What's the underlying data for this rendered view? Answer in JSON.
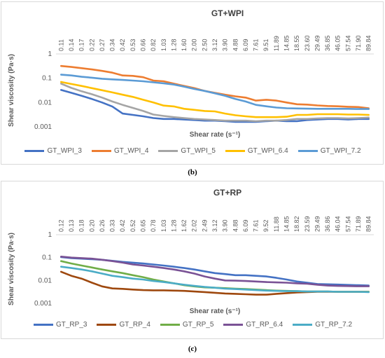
{
  "captions": {
    "b": "(b)",
    "c": "(c)"
  },
  "chart_data": [
    {
      "type": "line",
      "title": "GT+WPI",
      "xlabel": "Shear rate (s⁻¹)",
      "ylabel": "Shear viscosity (Pa·s)",
      "yscale": "log",
      "ylim": [
        0.001,
        1
      ],
      "yticks": [
        "1",
        "0.1",
        "0.01",
        "0.001"
      ],
      "legend_position": "bottom",
      "grid": false,
      "categories": [
        "0.11",
        "0.14",
        "0.17",
        "0.22",
        "0.27",
        "0.34",
        "0.42",
        "0.53",
        "0.66",
        "0.82",
        "1.03",
        "1.28",
        "1.60",
        "2.00",
        "2.50",
        "3.12",
        "3.90",
        "4.88",
        "6.09",
        "7.61",
        "9.51",
        "11.89",
        "14.85",
        "18.55",
        "23.60",
        "29.49",
        "36.85",
        "46.05",
        "57.54",
        "71.90",
        "89.84"
      ],
      "series": [
        {
          "name": "GT_WPI_3",
          "color": "#4472c4",
          "values": [
            0.033,
            0.025,
            0.019,
            0.014,
            0.01,
            0.0068,
            0.0035,
            0.0031,
            0.0027,
            0.0023,
            0.0021,
            0.0021,
            0.002,
            0.0019,
            0.0018,
            0.0018,
            0.0017,
            0.0016,
            0.0016,
            0.0016,
            0.0017,
            0.0018,
            0.0017,
            0.0017,
            0.0019,
            0.002,
            0.0021,
            0.0021,
            0.002,
            0.0021,
            0.0021
          ]
        },
        {
          "name": "GT_WPI_4",
          "color": "#ed7d31",
          "values": [
            0.32,
            0.29,
            0.26,
            0.23,
            0.2,
            0.17,
            0.13,
            0.125,
            0.11,
            0.08,
            0.075,
            0.06,
            0.048,
            0.039,
            0.03,
            0.025,
            0.021,
            0.018,
            0.016,
            0.012,
            0.013,
            0.012,
            0.01,
            0.0085,
            0.0082,
            0.0076,
            0.0072,
            0.007,
            0.0067,
            0.0065,
            0.0058
          ]
        },
        {
          "name": "GT_WPI_5",
          "color": "#a5a5a5",
          "values": [
            0.06,
            0.04,
            0.029,
            0.022,
            0.016,
            0.011,
            0.008,
            0.006,
            0.0045,
            0.0032,
            0.0028,
            0.0025,
            0.0023,
            0.0021,
            0.002,
            0.0019,
            0.0018,
            0.0018,
            0.0018,
            0.0017,
            0.0018,
            0.0018,
            0.0019,
            0.0021,
            0.0021,
            0.0022,
            0.0023,
            0.0023,
            0.0022,
            0.0023,
            0.0024
          ]
        },
        {
          "name": "GT_WPI_6.4",
          "color": "#ffc000",
          "values": [
            0.07,
            0.058,
            0.048,
            0.039,
            0.032,
            0.026,
            0.021,
            0.017,
            0.013,
            0.01,
            0.0075,
            0.0069,
            0.0055,
            0.005,
            0.0045,
            0.0043,
            0.0035,
            0.003,
            0.0027,
            0.0025,
            0.0025,
            0.0025,
            0.0026,
            0.0031,
            0.0031,
            0.0033,
            0.0033,
            0.0033,
            0.0032,
            0.0032,
            0.0031
          ]
        },
        {
          "name": "GT_WPI_7.2",
          "color": "#5b9bd5",
          "values": [
            0.14,
            0.13,
            0.115,
            0.105,
            0.095,
            0.09,
            0.085,
            0.08,
            0.075,
            0.068,
            0.062,
            0.055,
            0.045,
            0.036,
            0.03,
            0.024,
            0.019,
            0.014,
            0.011,
            0.008,
            0.007,
            0.0062,
            0.0058,
            0.0057,
            0.0056,
            0.0055,
            0.0055,
            0.0055,
            0.0055,
            0.0054,
            0.0054
          ]
        }
      ]
    },
    {
      "type": "line",
      "title": "GT+RP",
      "xlabel": "Shear rate (s⁻¹)",
      "ylabel": "Shear viscosity (Pa·s)",
      "yscale": "log",
      "ylim": [
        0.001,
        1
      ],
      "yticks": [
        "1",
        "0.1",
        "0.01",
        "0.001"
      ],
      "legend_position": "bottom",
      "grid": false,
      "categories": [
        "0.12",
        "0.13",
        "0.18",
        "0.20",
        "0.26",
        "0.33",
        "0.42",
        "0.52",
        "0.65",
        "0.78",
        "1.03",
        "1.28",
        "1.62",
        "2.02",
        "2.49",
        "3.12",
        "3.90",
        "4.88",
        "6.09",
        "7.61",
        "9.52",
        "11.88",
        "14.85",
        "18.82",
        "23.59",
        "29.49",
        "36.86",
        "46.04",
        "57.54",
        "71.89",
        "89.84"
      ],
      "series": [
        {
          "name": "GT_RP_3",
          "color": "#4472c4",
          "values": [
            0.105,
            0.095,
            0.09,
            0.085,
            0.08,
            0.072,
            0.065,
            0.06,
            0.055,
            0.05,
            0.045,
            0.04,
            0.035,
            0.03,
            0.025,
            0.021,
            0.019,
            0.017,
            0.017,
            0.016,
            0.015,
            0.013,
            0.011,
            0.009,
            0.008,
            0.007,
            0.0068,
            0.0066,
            0.0064,
            0.0062,
            0.006
          ]
        },
        {
          "name": "GT_RP_4",
          "color": "#9e480e",
          "values": [
            0.024,
            0.016,
            0.012,
            0.008,
            0.0055,
            0.0045,
            0.0043,
            0.004,
            0.0038,
            0.0037,
            0.0037,
            0.0036,
            0.0035,
            0.0033,
            0.0031,
            0.0029,
            0.0027,
            0.0026,
            0.0025,
            0.0024,
            0.0024,
            0.0026,
            0.0028,
            0.003,
            0.0031,
            0.0032,
            0.0032,
            0.0032,
            0.0032,
            0.0032,
            0.0032
          ]
        },
        {
          "name": "GT_RP_5",
          "color": "#70ad47",
          "values": [
            0.07,
            0.055,
            0.045,
            0.037,
            0.03,
            0.025,
            0.021,
            0.017,
            0.014,
            0.011,
            0.009,
            0.0075,
            0.0062,
            0.0055,
            0.005,
            0.0048,
            0.0046,
            0.0044,
            0.0042,
            0.004,
            0.0038,
            0.0036,
            0.0035,
            0.0034,
            0.0033,
            0.0033,
            0.0033,
            0.0032,
            0.0032,
            0.0032,
            0.0032
          ]
        },
        {
          "name": "GT_RP_6.4",
          "color": "#7a5295",
          "values": [
            0.11,
            0.1,
            0.095,
            0.09,
            0.08,
            0.07,
            0.06,
            0.05,
            0.045,
            0.04,
            0.035,
            0.03,
            0.025,
            0.02,
            0.015,
            0.012,
            0.01,
            0.0098,
            0.0095,
            0.009,
            0.0085,
            0.0082,
            0.008,
            0.0075,
            0.0072,
            0.0065,
            0.006,
            0.0058,
            0.0057,
            0.0056,
            0.0056
          ]
        },
        {
          "name": "GT_RP_7.2",
          "color": "#4bacc6",
          "values": [
            0.04,
            0.035,
            0.03,
            0.025,
            0.02,
            0.016,
            0.014,
            0.012,
            0.011,
            0.0095,
            0.0085,
            0.0075,
            0.0065,
            0.0058,
            0.0052,
            0.0048,
            0.0044,
            0.0042,
            0.004,
            0.0038,
            0.0036,
            0.0035,
            0.0034,
            0.0034,
            0.0033,
            0.0033,
            0.0033,
            0.0032,
            0.0032,
            0.0032,
            0.0031
          ]
        }
      ]
    }
  ]
}
